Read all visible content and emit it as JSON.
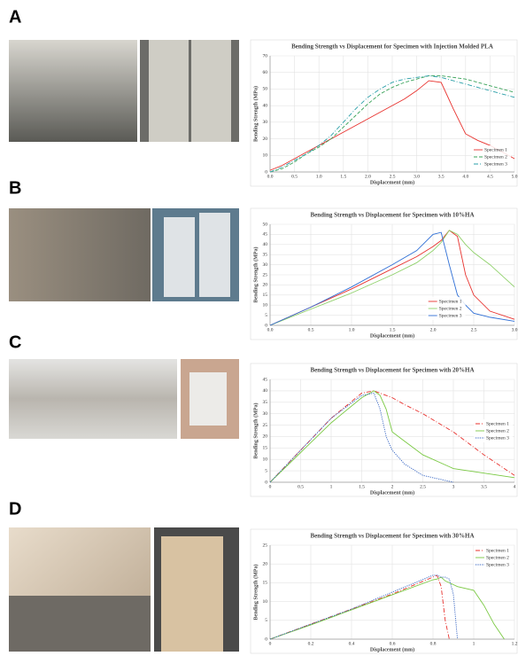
{
  "chart_data": [
    {
      "type": "line",
      "panel": "A",
      "title": "Bending Strength vs Displacement for Specimen with Injection Molded PLA",
      "x_label": "Displacement (mm)",
      "y_label": "Bending Strength (MPa)",
      "x": [
        0,
        0.25,
        0.5,
        0.75,
        1.0,
        1.25,
        1.5,
        1.75,
        2.0,
        2.25,
        2.5,
        2.75,
        3.0,
        3.25,
        3.5,
        3.75,
        4.0,
        4.25,
        4.5,
        4.75,
        5.0
      ],
      "series": [
        {
          "name": "Specimen 1",
          "color": "#e8322e",
          "dash": "solid",
          "values": [
            1,
            4,
            8,
            12,
            16,
            20,
            24,
            28,
            32,
            36,
            40,
            44,
            49,
            55,
            54,
            38,
            23,
            19,
            16,
            12,
            8
          ]
        },
        {
          "name": "Specimen 2",
          "color": "#3aa35a",
          "dash": "dashed",
          "values": [
            0,
            2,
            6,
            11,
            15,
            20,
            27,
            34,
            41,
            47,
            51,
            54,
            56,
            58,
            58,
            57,
            56,
            54,
            52,
            50,
            48
          ]
        },
        {
          "name": "Specimen 3",
          "color": "#2a9fa8",
          "dash": "dashdot",
          "values": [
            0,
            3,
            7,
            11,
            16,
            22,
            30,
            38,
            45,
            50,
            54,
            56,
            57,
            58,
            57,
            55,
            53,
            51,
            49,
            47,
            45
          ]
        }
      ],
      "xlim": [
        0,
        5
      ],
      "ylim": [
        0,
        70
      ],
      "xticks": [
        {
          "value": 0,
          "label": "0.0"
        },
        {
          "value": 0.5,
          "label": "0.5"
        },
        {
          "value": 1,
          "label": "1.0"
        },
        {
          "value": 1.5,
          "label": "1.5"
        },
        {
          "value": 2,
          "label": "2.0"
        },
        {
          "value": 2.5,
          "label": "2.5"
        },
        {
          "value": 3,
          "label": "3.0"
        },
        {
          "value": 3.5,
          "label": "3.5"
        },
        {
          "value": 4,
          "label": "4.0"
        },
        {
          "value": 4.5,
          "label": "4.5"
        },
        {
          "value": 5,
          "label": "5.0"
        }
      ],
      "yticks": [
        0,
        10,
        20,
        30,
        40,
        50,
        60,
        70
      ],
      "grid": true,
      "legend": "lower right"
    },
    {
      "type": "line",
      "panel": "B",
      "title": "Bending Strength vs Displacement for Specimen with 10%HA",
      "x_label": "Displacement (mm)",
      "y_label": "Bending Strength (MPa)",
      "x": [
        0,
        0.5,
        1.0,
        1.5,
        1.8,
        2.0,
        2.1,
        2.2,
        2.3,
        2.4,
        2.5,
        2.7,
        3.0
      ],
      "series": [
        {
          "name": "Specimen 1",
          "color": "#e8322e",
          "dash": "solid",
          "values": [
            0,
            9,
            18,
            28,
            34,
            39,
            42,
            47,
            44,
            25,
            15,
            7,
            3
          ]
        },
        {
          "name": "Specimen 2",
          "color": "#8fd16a",
          "dash": "solid",
          "values": [
            0,
            8,
            16,
            25,
            31,
            37,
            41,
            47,
            45,
            40,
            36,
            30,
            19
          ]
        },
        {
          "name": "Specimen 3",
          "color": "#2f6fd6",
          "dash": "solid",
          "values": [
            0,
            9,
            19,
            30,
            37,
            45,
            46,
            30,
            15,
            10,
            6,
            4,
            2
          ]
        }
      ],
      "xlim": [
        0,
        3
      ],
      "ylim": [
        0,
        50
      ],
      "xticks": [
        {
          "value": 0,
          "label": "0.0"
        },
        {
          "value": 0.5,
          "label": "0.5"
        },
        {
          "value": 1,
          "label": "1.0"
        },
        {
          "value": 1.5,
          "label": "1.5"
        },
        {
          "value": 2,
          "label": "2.0"
        },
        {
          "value": 2.5,
          "label": "2.5"
        },
        {
          "value": 3,
          "label": "3.0"
        }
      ],
      "yticks": [
        0,
        5,
        10,
        15,
        20,
        25,
        30,
        35,
        40,
        45,
        50
      ],
      "grid": true,
      "legend": "lower center"
    },
    {
      "type": "line",
      "panel": "C",
      "title": "Bending Strength vs Displacement for Specimen with 20%HA",
      "x_label": "Displacement (mm)",
      "y_label": "Bending Strength (MPa)",
      "x": [
        0,
        0.5,
        1.0,
        1.5,
        1.7,
        1.8,
        1.9,
        2.0,
        2.2,
        2.5,
        3.0,
        3.5,
        4.0
      ],
      "series": [
        {
          "name": "Specimen 1",
          "color": "#e8322e",
          "dash": "dashdot",
          "values": [
            0,
            14,
            28,
            39,
            40,
            39,
            38,
            37,
            34,
            30,
            22,
            12,
            3
          ]
        },
        {
          "name": "Specimen 2",
          "color": "#7ac943",
          "dash": "solid",
          "values": [
            0,
            13,
            26,
            37,
            40,
            38,
            32,
            22,
            18,
            12,
            6,
            4,
            2
          ]
        },
        {
          "name": "Specimen 3",
          "color": "#2f5fc0",
          "dash": "dotted",
          "values": [
            0,
            14,
            28,
            38,
            39,
            32,
            20,
            14,
            8,
            3,
            0,
            null,
            null
          ]
        }
      ],
      "xlim": [
        0,
        4
      ],
      "ylim": [
        0,
        45
      ],
      "xticks": [
        0,
        0.5,
        1,
        1.5,
        2,
        2.5,
        3,
        3.5,
        4
      ],
      "yticks": [
        0,
        5,
        10,
        15,
        20,
        25,
        30,
        35,
        40,
        45
      ],
      "grid": true,
      "legend": "center right"
    },
    {
      "type": "line",
      "panel": "D",
      "title": "Bending Strength vs Displacement for Specimen with 30%HA",
      "x_label": "Displacement (mm)",
      "y_label": "Bending Strength (MPa)",
      "x": [
        0,
        0.2,
        0.4,
        0.6,
        0.8,
        0.82,
        0.84,
        0.86,
        0.88,
        0.9,
        0.92,
        1.0,
        1.05,
        1.1,
        1.15
      ],
      "series": [
        {
          "name": "Specimen 1",
          "color": "#e8322e",
          "dash": "dashdot",
          "values": [
            0,
            4,
            8,
            12,
            16.5,
            17,
            14,
            5,
            0,
            null,
            null,
            null,
            null,
            null,
            null
          ]
        },
        {
          "name": "Specimen 2",
          "color": "#7ac943",
          "dash": "solid",
          "values": [
            0,
            3.8,
            7.8,
            11.8,
            15.8,
            16,
            16.5,
            15.5,
            15,
            14.5,
            14,
            13,
            9,
            4,
            0
          ]
        },
        {
          "name": "Specimen 3",
          "color": "#2f5fc0",
          "dash": "dotted",
          "values": [
            0,
            4,
            8,
            12.5,
            17,
            17,
            16.5,
            16.5,
            16,
            12,
            0,
            null,
            null,
            null,
            null
          ]
        }
      ],
      "xlim": [
        0,
        1.2
      ],
      "ylim": [
        0,
        25
      ],
      "xticks": [
        0,
        0.2,
        0.4,
        0.6,
        0.8,
        1,
        1.2
      ],
      "yticks": [
        0,
        5,
        10,
        15,
        20,
        25
      ],
      "grid": true,
      "legend": "upper right"
    }
  ]
}
